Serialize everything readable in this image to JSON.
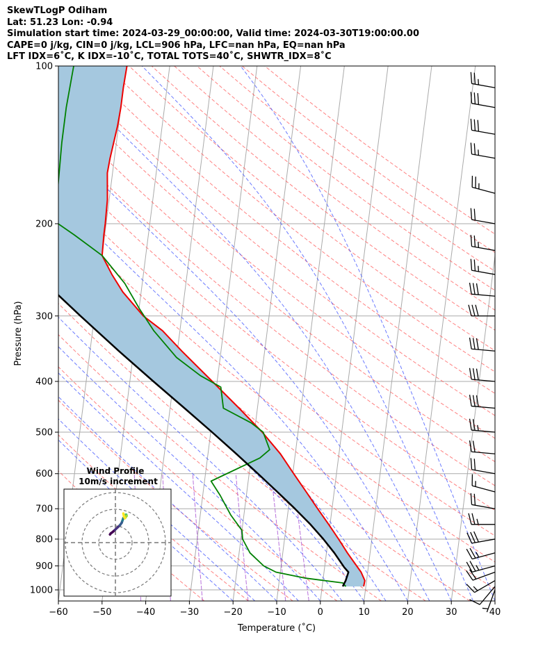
{
  "header": {
    "line1": "SkewTLogP Odiham",
    "line2": "Lat: 51.23   Lon: -0.94",
    "line3": "Simulation start time: 2024-03-29_00:00:00, Valid time: 2024-03-30T19:00:00.00",
    "line4": "CAPE=0 j/kg, CIN=0 j/kg, LCL=906 hPa, LFC=nan hPa, EQ=nan hPa",
    "line5": "LFT IDX=6˚C, K IDX=-10˚C, TOTAL TOTS=40˚C, SHWTR_IDX=8˚C"
  },
  "chart_data": {
    "type": "line",
    "title": "SkewTLogP Odiham",
    "xlabel": "Temperature (˚C)",
    "ylabel": "Pressure (hPa)",
    "xlim": [
      -60,
      40
    ],
    "ylim": [
      1050,
      100
    ],
    "yscale": "log",
    "x_ticks": [
      "−60",
      "−50",
      "−40",
      "−30",
      "−20",
      "−10",
      "0",
      "10",
      "20",
      "30",
      "40"
    ],
    "x_tick_values": [
      -60,
      -50,
      -40,
      -30,
      -20,
      -10,
      0,
      10,
      20,
      30,
      40
    ],
    "y_ticks": [
      "100",
      "200",
      "300",
      "400",
      "500",
      "600",
      "700",
      "800",
      "900",
      "1000"
    ],
    "y_tick_values": [
      100,
      200,
      300,
      400,
      500,
      600,
      700,
      800,
      900,
      1000
    ],
    "grid": true,
    "colors": {
      "temperature": "#ee0000",
      "dewpoint": "#008000",
      "parcel": "#000000",
      "fill": "#a5c8df",
      "dry_adiabat": "#ff5555",
      "moist_adiabat": "#3a4dff",
      "mixing_ratio": "#9933cc",
      "isotherm": "#aaaaaa"
    },
    "series": [
      {
        "key": "temperature",
        "pressure": [
          985,
          960,
          925,
          900,
          850,
          800,
          750,
          700,
          650,
          600,
          550,
          500,
          450,
          400,
          350,
          320,
          300,
          270,
          250,
          230,
          210,
          200,
          180,
          160,
          150,
          130,
          120,
          110,
          100
        ],
        "values": [
          9.5,
          9.6,
          8.5,
          7.3,
          4.8,
          2.4,
          -0.3,
          -3.3,
          -6.4,
          -9.8,
          -13.4,
          -18.2,
          -24.2,
          -31.1,
          -39.0,
          -44.0,
          -48.8,
          -54.2,
          -57.2,
          -60.0,
          -60.2,
          -60.2,
          -60.4,
          -61.2,
          -61.0,
          -60.2,
          -60.0,
          -60.0,
          -59.8
        ]
      },
      {
        "key": "dewpoint",
        "pressure": [
          985,
          970,
          950,
          925,
          900,
          850,
          800,
          770,
          720,
          660,
          620,
          560,
          540,
          500,
          480,
          450,
          410,
          390,
          360,
          320,
          290,
          260,
          230,
          210,
          200,
          180,
          140,
          120,
          100
        ],
        "values": [
          5.4,
          4.6,
          -4.0,
          -11.0,
          -14.0,
          -17.5,
          -19.6,
          -20.0,
          -23.0,
          -26.0,
          -28.5,
          -18.0,
          -16.0,
          -18.0,
          -21.0,
          -27.8,
          -29.0,
          -34.0,
          -40.0,
          -46.0,
          -50.0,
          -54.0,
          -60.0,
          -67.0,
          -71.0,
          -72.0,
          -72.5,
          -72.5,
          -72.0
        ]
      },
      {
        "key": "parcel",
        "pressure": [
          985,
          960,
          925,
          906,
          850,
          800,
          750,
          700,
          650,
          600,
          550,
          500,
          450,
          400,
          350,
          300,
          250,
          200,
          150,
          120,
          100
        ],
        "values": [
          4.7,
          5.2,
          5.6,
          4.5,
          1.8,
          -1.1,
          -4.5,
          -8.5,
          -13.0,
          -18.0,
          -23.5,
          -29.7,
          -36.7,
          -44.6,
          -53.4,
          -63.2,
          -74.5,
          -87.6,
          -103.6,
          -115.6,
          -124.7
        ]
      }
    ],
    "wind_barbs": {
      "pressure": [
        1000,
        985,
        960,
        925,
        900,
        850,
        800,
        750,
        700,
        650,
        600,
        550,
        500,
        450,
        400,
        350,
        300,
        275,
        250,
        225,
        200,
        175,
        150,
        135,
        120,
        110
      ],
      "speed_kt": [
        5,
        10,
        15,
        20,
        25,
        25,
        30,
        25,
        20,
        15,
        20,
        20,
        25,
        30,
        30,
        30,
        30,
        30,
        25,
        25,
        20,
        25,
        25,
        30,
        30,
        25
      ],
      "direction_deg": [
        200,
        220,
        240,
        250,
        255,
        255,
        260,
        270,
        280,
        285,
        280,
        275,
        275,
        275,
        275,
        275,
        270,
        275,
        280,
        280,
        280,
        285,
        280,
        280,
        280,
        280
      ]
    },
    "hodograph": {
      "title": "Wind Profile",
      "subtitle": "10m/s increment",
      "u": [
        1,
        2,
        4,
        7,
        10,
        13,
        15,
        16,
        17,
        18,
        19,
        20,
        20.5,
        21,
        20,
        19,
        18,
        17
      ],
      "v": [
        1,
        2,
        3,
        5,
        7,
        9,
        11,
        13,
        15,
        16,
        17,
        18,
        18,
        17,
        16,
        15,
        16,
        19
      ]
    }
  }
}
